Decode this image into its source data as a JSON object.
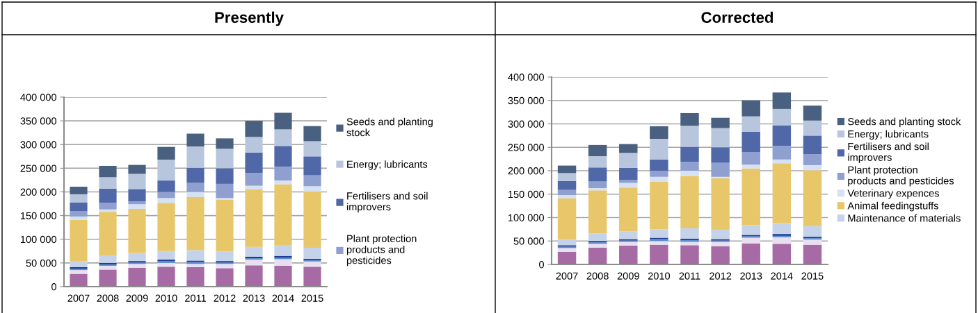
{
  "chart_data": [
    {
      "type": "bar",
      "title": "Presently",
      "stacked": true,
      "categories": [
        "2007",
        "2008",
        "2009",
        "2010",
        "2011",
        "2012",
        "2013",
        "2014",
        "2015"
      ],
      "ylim": [
        0,
        400000
      ],
      "yticks": [
        {
          "value": 0,
          "label": "0"
        },
        {
          "value": 50000,
          "label": "50 000"
        },
        {
          "value": 100000,
          "label": "100 000"
        },
        {
          "value": 150000,
          "label": "150 000"
        },
        {
          "value": 200000,
          "label": "200 000"
        },
        {
          "value": 250000,
          "label": "250 000"
        },
        {
          "value": 300000,
          "label": "300 000"
        },
        {
          "value": 350000,
          "label": "350 000"
        },
        {
          "value": 400000,
          "label": "400 000"
        }
      ],
      "grid": "y",
      "legend": "right",
      "series": [
        {
          "color": "#a66aa4",
          "values": [
            27000,
            36000,
            40000,
            42000,
            41000,
            39000,
            45000,
            44000,
            42000
          ]
        },
        {
          "color": "#e8dff0",
          "values": [
            8000,
            8000,
            8000,
            8000,
            7000,
            9000,
            12000,
            14000,
            11000
          ]
        },
        {
          "color": "#5b8fd0",
          "values": [
            3000,
            3000,
            3000,
            4000,
            4000,
            3000,
            3000,
            3000,
            3000
          ]
        },
        {
          "color": "#1f3a93",
          "values": [
            3000,
            3000,
            3000,
            3000,
            3000,
            3000,
            3000,
            4000,
            3000
          ]
        },
        {
          "color": "#c5d3ea",
          "values": [
            12000,
            16000,
            17000,
            18000,
            22000,
            20000,
            21000,
            23000,
            23000
          ]
        },
        {
          "color": "#e8c76a",
          "values": [
            88000,
            92000,
            93000,
            102000,
            112000,
            110000,
            121000,
            128000,
            119000
          ]
        },
        {
          "color": "#d6e2f3",
          "values": [
            7000,
            5000,
            10000,
            10000,
            11000,
            3000,
            8000,
            8000,
            11000
          ]
        },
        {
          "name": "Plant protection products and pesticides",
          "color": "#8fa0d0",
          "values": [
            11000,
            14000,
            6000,
            13000,
            19000,
            30000,
            27000,
            29000,
            23000
          ]
        },
        {
          "name": "Fertilisers and soil improvers",
          "color": "#5068a8",
          "values": [
            19000,
            30000,
            26000,
            24000,
            32000,
            33000,
            43000,
            44000,
            40000
          ]
        },
        {
          "name": "Energy; lubricants",
          "color": "#b8c6dd",
          "values": [
            17000,
            24000,
            32000,
            44000,
            45000,
            41000,
            33000,
            35000,
            32000
          ]
        },
        {
          "name": "Seeds and planting stock",
          "color": "#4a6081",
          "values": [
            16000,
            24000,
            19000,
            27000,
            27000,
            22000,
            34000,
            35000,
            32000
          ]
        }
      ]
    },
    {
      "type": "bar",
      "title": "Corrected",
      "stacked": true,
      "categories": [
        "2007",
        "2008",
        "2009",
        "2010",
        "2011",
        "2012",
        "2013",
        "2014",
        "2015"
      ],
      "ylim": [
        0,
        400000
      ],
      "yticks": [
        {
          "value": 0,
          "label": "0"
        },
        {
          "value": 50000,
          "label": "50 000"
        },
        {
          "value": 100000,
          "label": "100 000"
        },
        {
          "value": 150000,
          "label": "150 000"
        },
        {
          "value": 200000,
          "label": "200 000"
        },
        {
          "value": 250000,
          "label": "250 000"
        },
        {
          "value": 300000,
          "label": "300 000"
        },
        {
          "value": 350000,
          "label": "350 000"
        },
        {
          "value": 400000,
          "label": "400 000"
        }
      ],
      "grid": "y",
      "legend": "right",
      "series": [
        {
          "color": "#a66aa4",
          "values": [
            27000,
            36000,
            40000,
            42000,
            41000,
            39000,
            45000,
            44000,
            42000
          ]
        },
        {
          "color": "#e8dff0",
          "values": [
            8000,
            8000,
            8000,
            8000,
            7000,
            9000,
            12000,
            14000,
            11000
          ]
        },
        {
          "color": "#5b8fd0",
          "values": [
            3000,
            3000,
            3000,
            4000,
            4000,
            3000,
            3000,
            3000,
            3000
          ]
        },
        {
          "color": "#1f3a93",
          "values": [
            3000,
            3000,
            3000,
            3000,
            3000,
            3000,
            3000,
            4000,
            3000
          ]
        },
        {
          "name": "Maintenance of materials",
          "color": "#c5d3ea",
          "values": [
            12000,
            16000,
            17000,
            18000,
            22000,
            20000,
            21000,
            23000,
            23000
          ]
        },
        {
          "name": "Animal feedingstuffs",
          "color": "#e8c76a",
          "values": [
            88000,
            92000,
            93000,
            102000,
            112000,
            110000,
            121000,
            128000,
            119000
          ]
        },
        {
          "name": "Veterinary expences",
          "color": "#d6e2f3",
          "values": [
            7000,
            5000,
            10000,
            10000,
            11000,
            3000,
            8000,
            8000,
            11000
          ]
        },
        {
          "name": "Plant protection products and pesticides",
          "color": "#8fa0d0",
          "values": [
            11000,
            14000,
            6000,
            13000,
            19000,
            30000,
            27000,
            29000,
            23000
          ]
        },
        {
          "name": "Fertilisers and soil improvers",
          "color": "#5068a8",
          "values": [
            19000,
            30000,
            26000,
            24000,
            32000,
            33000,
            43000,
            44000,
            40000
          ]
        },
        {
          "name": "Energy; lubricants",
          "color": "#b8c6dd",
          "values": [
            17000,
            24000,
            32000,
            44000,
            45000,
            41000,
            33000,
            35000,
            32000
          ]
        },
        {
          "name": "Seeds and planting stock",
          "color": "#4a6081",
          "values": [
            16000,
            24000,
            19000,
            27000,
            27000,
            22000,
            34000,
            35000,
            32000
          ]
        }
      ]
    }
  ]
}
